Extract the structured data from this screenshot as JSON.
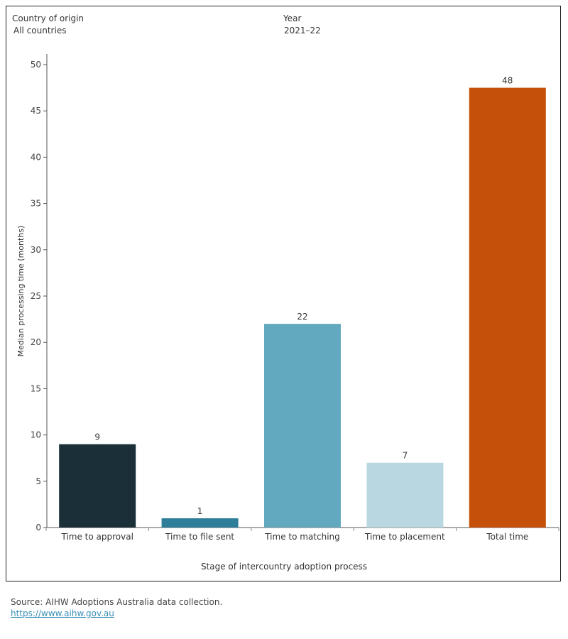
{
  "filters": {
    "country": {
      "label": "Country of origin",
      "value": "All countries"
    },
    "year": {
      "label": "Year",
      "value": "2021–22"
    }
  },
  "chart_data": {
    "type": "bar",
    "categories": [
      "Time to approval",
      "Time to file sent",
      "Time to matching",
      "Time to placement",
      "Total time"
    ],
    "values": [
      9,
      1,
      22,
      7,
      47.5
    ],
    "data_labels": [
      "9",
      "1",
      "22",
      "7",
      "48"
    ],
    "colors": [
      "#1b2f38",
      "#2e7d99",
      "#62a9c0",
      "#b8d7e0",
      "#c55009"
    ],
    "xlabel": "Stage of intercountry adoption process",
    "ylabel": "Median processing time (months)",
    "ylim": [
      0,
      50
    ],
    "yticks": [
      0,
      5,
      10,
      15,
      20,
      25,
      30,
      35,
      40,
      45,
      50
    ],
    "grid": false
  },
  "footer": {
    "source": "Source: AIHW Adoptions Australia data collection.",
    "link": "https://www.aihw.gov.au"
  }
}
